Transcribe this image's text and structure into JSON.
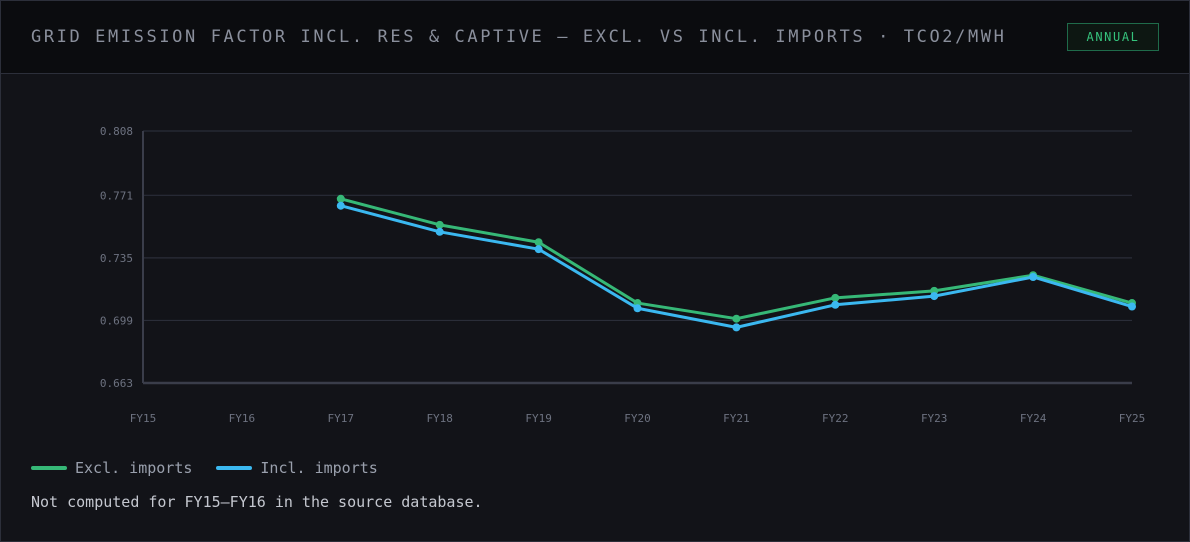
{
  "header": {
    "title": "GRID EMISSION FACTOR INCL. RES & CAPTIVE — EXCL. VS INCL. IMPORTS · TCO2/MWH",
    "badge": "ANNUAL"
  },
  "chart_data": {
    "type": "line",
    "title": "GRID EMISSION FACTOR INCL. RES & CAPTIVE — EXCL. VS INCL. IMPORTS · TCO2/MWH",
    "xlabel": "",
    "ylabel": "",
    "categories": [
      "FY15",
      "FY16",
      "FY17",
      "FY18",
      "FY19",
      "FY20",
      "FY21",
      "FY22",
      "FY23",
      "FY24",
      "FY25"
    ],
    "y_ticks": [
      "0.808",
      "0.771",
      "0.735",
      "0.699",
      "0.663"
    ],
    "ylim": [
      0.663,
      0.808
    ],
    "grid": true,
    "legend_position": "bottom-left",
    "series": [
      {
        "name": "Excl. imports",
        "color": "#36b877",
        "values": [
          null,
          null,
          0.769,
          0.754,
          0.744,
          0.709,
          0.7,
          0.712,
          0.716,
          0.725,
          0.709
        ]
      },
      {
        "name": "Incl. imports",
        "color": "#3bb8f0",
        "values": [
          null,
          null,
          0.765,
          0.75,
          0.74,
          0.706,
          0.695,
          0.708,
          0.713,
          0.724,
          0.707
        ]
      }
    ]
  },
  "legend": {
    "excl_label": "Excl. imports",
    "incl_label": "Incl. imports"
  },
  "note": "Not computed for FY15–FY16 in the source database.",
  "colors": {
    "excl": "#36b877",
    "incl": "#3bb8f0",
    "accent": "#35c27c",
    "grid": "#2a2d38"
  }
}
